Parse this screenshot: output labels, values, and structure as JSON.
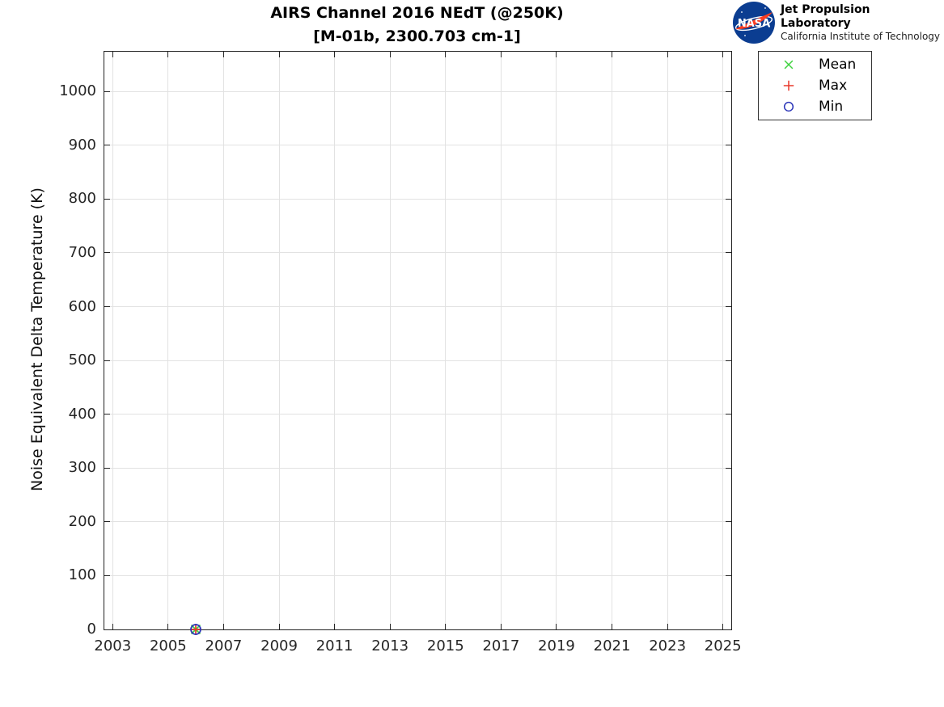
{
  "header": {
    "title_line1": "AIRS Channel 2016 NEdT (@250K)",
    "title_line2": "[M-01b, 2300.703 cm-1]",
    "logo": {
      "nasa_text": "NASA",
      "org_name": "Jet Propulsion Laboratory",
      "org_sub": "California Institute of Technology",
      "nasa_blue": "#0b3d91",
      "nasa_red": "#fc3d21"
    }
  },
  "chart_data": {
    "type": "scatter",
    "title": "AIRS Channel 2016 NEdT (@250K) [M-01b, 2300.703 cm-1]",
    "xlabel": "",
    "ylabel": "Noise Equivalent Delta Temperature (K)",
    "xlim": [
      2002.7,
      2025.3
    ],
    "ylim": [
      0,
      1074
    ],
    "xticks": [
      2003,
      2005,
      2007,
      2009,
      2011,
      2013,
      2015,
      2017,
      2019,
      2021,
      2023,
      2025
    ],
    "yticks": [
      0,
      100,
      200,
      300,
      400,
      500,
      600,
      700,
      800,
      900,
      1000
    ],
    "grid": true,
    "legend_position": "outside-top-right",
    "series": [
      {
        "name": "Mean",
        "marker": "x",
        "color": "#3fd23f",
        "x": [
          2006
        ],
        "y": [
          0
        ]
      },
      {
        "name": "Max",
        "marker": "+",
        "color": "#e8392c",
        "x": [
          2006
        ],
        "y": [
          0
        ]
      },
      {
        "name": "Min",
        "marker": "o",
        "color": "#2b35b8",
        "x": [
          2006
        ],
        "y": [
          0
        ]
      }
    ]
  }
}
